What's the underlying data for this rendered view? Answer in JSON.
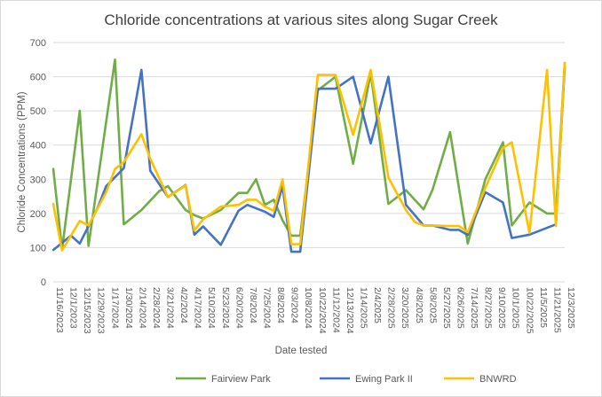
{
  "chart_data": {
    "type": "line",
    "title": "Chloride concentrations at various sites along Sugar Creek",
    "xlabel": "Date tested",
    "ylabel": "Chloride Concentrations (PPM)",
    "ylim": [
      0,
      700
    ],
    "yticks": [
      0,
      100,
      200,
      300,
      400,
      500,
      600,
      700
    ],
    "grid": true,
    "legend_position": "bottom",
    "x": [
      "11/16/2023",
      "12/1/2023",
      "12/15/2023",
      "12/29/2023",
      "1/17/2024",
      "1/30/2024",
      "2/14/2024",
      "2/28/2024",
      "3/21/2024",
      "4/2/2024",
      "4/17/2024",
      "5/10/2024",
      "5/23/2024",
      "6/20/2024",
      "7/8/2024",
      "7/25/2024",
      "8/8/2024",
      "9/3/2024",
      "10/8/2024",
      "10/22/2024",
      "11/12/2024",
      "12/13/2024",
      "1/14/2025",
      "2/4/2025",
      "2/28/2025",
      "3/20/2025",
      "4/8/2025",
      "5/8/2025",
      "5/27/2025",
      "6/26/2025",
      "7/14/2025",
      "8/27/2025",
      "9/10/2025",
      "10/1/2025",
      "10/22/2025",
      "11/5/2025",
      "11/21/2025",
      "12/3/2025"
    ],
    "xticks_shown": [
      "11/16/2023",
      "12/1/2023",
      "12/15/2023",
      "12/29/2023",
      "1/17/2024",
      "1/30/2024",
      "2/14/2024",
      "2/28/2024",
      "3/21/2024",
      "4/2/2024",
      "4/17/2024",
      "5/10/2024",
      "5/23/2024",
      "6/20/2024",
      "7/8/2024",
      "7/25/2024",
      "8/8/2024",
      "9/3/2024",
      "10/8/2024",
      "10/22/2024",
      "11/12/2024",
      "12/13/2024",
      "1/14/2025",
      "2/4/2025",
      "2/28/2025",
      "3/20/2025",
      "4/8/2025",
      "5/8/2025",
      "5/27/2025",
      "6/26/2025",
      "7/14/2025",
      "8/27/2025",
      "9/10/2025",
      "10/1/2025",
      "10/22/2025",
      "11/5/2025",
      "11/21/2025",
      "12/3/2025"
    ],
    "series": [
      {
        "name": "Fairview Park",
        "color": "#70AD47",
        "points": [
          [
            0,
            330
          ],
          [
            1,
            95
          ],
          [
            3,
            500
          ],
          [
            4,
            105
          ],
          [
            7,
            650
          ],
          [
            8,
            168
          ],
          [
            10,
            210
          ],
          [
            12,
            265
          ],
          [
            13,
            280
          ],
          [
            15,
            210
          ],
          [
            16,
            195
          ],
          [
            17,
            185
          ],
          [
            19,
            210
          ],
          [
            21,
            260
          ],
          [
            22,
            260
          ],
          [
            23,
            300
          ],
          [
            24,
            225
          ],
          [
            25,
            240
          ],
          [
            26,
            180
          ],
          [
            27,
            135
          ],
          [
            28,
            135
          ],
          [
            30,
            560
          ],
          [
            32,
            600
          ],
          [
            34,
            345
          ],
          [
            36,
            610
          ],
          [
            38,
            228
          ],
          [
            40,
            268
          ],
          [
            42,
            212
          ],
          [
            43,
            268
          ],
          [
            45,
            438
          ],
          [
            47,
            112
          ],
          [
            49,
            300
          ],
          [
            51,
            408
          ],
          [
            52,
            165
          ],
          [
            54,
            232
          ],
          [
            56,
            200
          ],
          [
            57,
            200
          ],
          [
            58,
            640
          ]
        ]
      },
      {
        "name": "Ewing Park II",
        "color": "#4472C4",
        "points": [
          [
            0,
            93
          ],
          [
            2,
            135
          ],
          [
            3,
            112
          ],
          [
            5,
            215
          ],
          [
            6,
            280
          ],
          [
            8,
            332
          ],
          [
            10,
            620
          ],
          [
            11,
            325
          ],
          [
            13,
            248
          ],
          [
            15,
            283
          ],
          [
            16,
            138
          ],
          [
            17,
            162
          ],
          [
            19,
            108
          ],
          [
            21,
            208
          ],
          [
            22,
            225
          ],
          [
            24,
            205
          ],
          [
            25,
            190
          ],
          [
            26,
            280
          ],
          [
            27,
            88
          ],
          [
            28,
            88
          ],
          [
            30,
            565
          ],
          [
            32,
            565
          ],
          [
            34,
            600
          ],
          [
            36,
            405
          ],
          [
            38,
            600
          ],
          [
            40,
            225
          ],
          [
            42,
            165
          ],
          [
            43,
            165
          ],
          [
            45,
            152
          ],
          [
            46,
            152
          ],
          [
            47,
            137
          ],
          [
            49,
            262
          ],
          [
            51,
            232
          ],
          [
            52,
            128
          ],
          [
            54,
            138
          ],
          [
            56,
            158
          ],
          [
            57,
            168
          ],
          [
            58,
            628
          ]
        ]
      },
      {
        "name": "BNWRD",
        "color": "#FFC000",
        "points": [
          [
            0,
            228
          ],
          [
            1,
            92
          ],
          [
            3,
            178
          ],
          [
            4,
            165
          ],
          [
            6,
            262
          ],
          [
            7,
            330
          ],
          [
            8,
            350
          ],
          [
            10,
            432
          ],
          [
            11,
            360
          ],
          [
            13,
            248
          ],
          [
            15,
            282
          ],
          [
            16,
            150
          ],
          [
            17,
            183
          ],
          [
            19,
            220
          ],
          [
            21,
            225
          ],
          [
            22,
            240
          ],
          [
            23,
            240
          ],
          [
            24,
            220
          ],
          [
            25,
            208
          ],
          [
            26,
            300
          ],
          [
            27,
            110
          ],
          [
            28,
            110
          ],
          [
            30,
            605
          ],
          [
            32,
            605
          ],
          [
            34,
            430
          ],
          [
            36,
            620
          ],
          [
            38,
            305
          ],
          [
            40,
            210
          ],
          [
            41,
            175
          ],
          [
            42,
            165
          ],
          [
            43,
            165
          ],
          [
            45,
            163
          ],
          [
            46,
            163
          ],
          [
            47,
            145
          ],
          [
            49,
            275
          ],
          [
            51,
            392
          ],
          [
            52,
            408
          ],
          [
            54,
            143
          ],
          [
            56,
            620
          ],
          [
            57,
            163
          ],
          [
            58,
            640
          ]
        ]
      }
    ]
  }
}
